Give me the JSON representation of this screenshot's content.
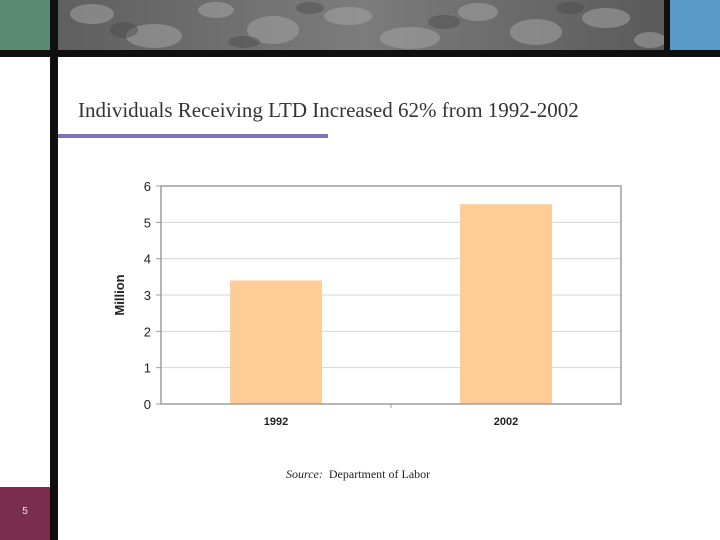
{
  "slide": {
    "title": "Individuals Receiving LTD Increased 62% from 1992-2002",
    "page_number": "5",
    "source_label": "Source:",
    "source_value": "Department of Labor"
  },
  "colors": {
    "bar": "#FFCB96",
    "corner_green": "#5B8A73",
    "corner_blue": "#5A9AC6",
    "page_badge": "#7A2D4D",
    "title_underline": "#7B74B6",
    "grid": "#D4D4D4",
    "plot_border": "#9E9E9E",
    "axis_text": "#222222"
  },
  "chart_data": {
    "type": "bar",
    "categories": [
      "1992",
      "2002"
    ],
    "values": [
      3.4,
      5.5
    ],
    "ylabel": "Million",
    "xlabel": "",
    "ylim": [
      0,
      6
    ],
    "yticks": [
      0,
      1,
      2,
      3,
      4,
      5,
      6
    ],
    "grid": true,
    "legend": "none"
  }
}
